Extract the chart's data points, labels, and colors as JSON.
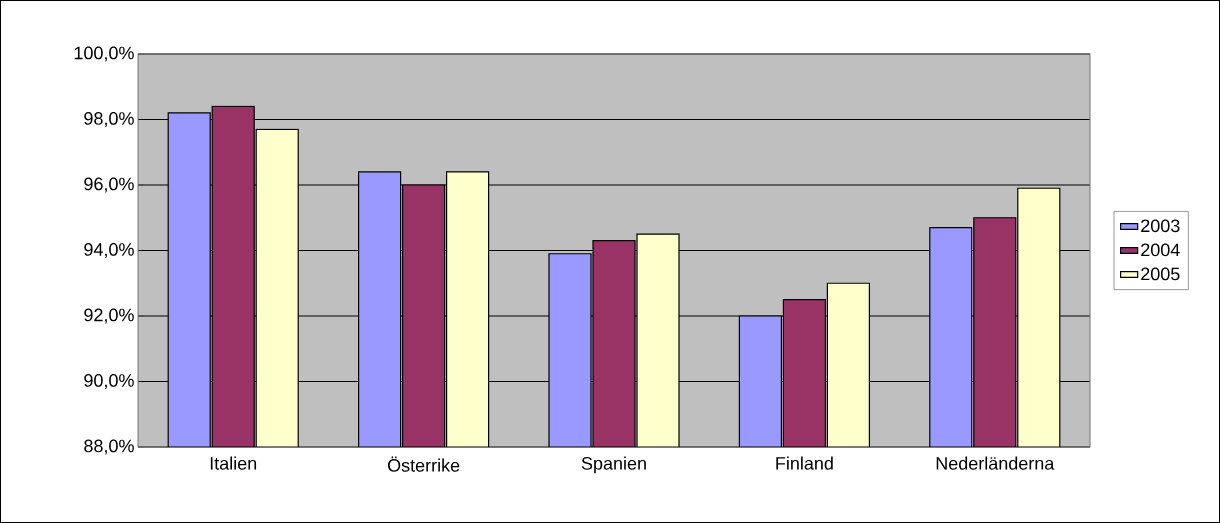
{
  "chart_data": {
    "type": "bar",
    "categories": [
      "Italien",
      "Österrike",
      "Spanien",
      "Finland",
      "Nederländerna"
    ],
    "series": [
      {
        "name": "2003",
        "color": "#9999ff",
        "values": [
          98.2,
          96.4,
          93.9,
          92.0,
          94.7
        ]
      },
      {
        "name": "2004",
        "color": "#993366",
        "values": [
          98.4,
          96.0,
          94.3,
          92.5,
          95.0
        ]
      },
      {
        "name": "2005",
        "color": "#ffffcc",
        "values": [
          97.7,
          96.4,
          94.5,
          93.0,
          95.9
        ]
      }
    ],
    "ylim": [
      88,
      100
    ],
    "yticks": [
      {
        "value": 88,
        "label": "88,0%"
      },
      {
        "value": 90,
        "label": "90,0%"
      },
      {
        "value": 92,
        "label": "92,0%"
      },
      {
        "value": 94,
        "label": "94,0%"
      },
      {
        "value": 96,
        "label": "96,0%"
      },
      {
        "value": 98,
        "label": "98,0%"
      },
      {
        "value": 100,
        "label": "100,0%"
      }
    ],
    "grid": "y",
    "legend": "right"
  }
}
